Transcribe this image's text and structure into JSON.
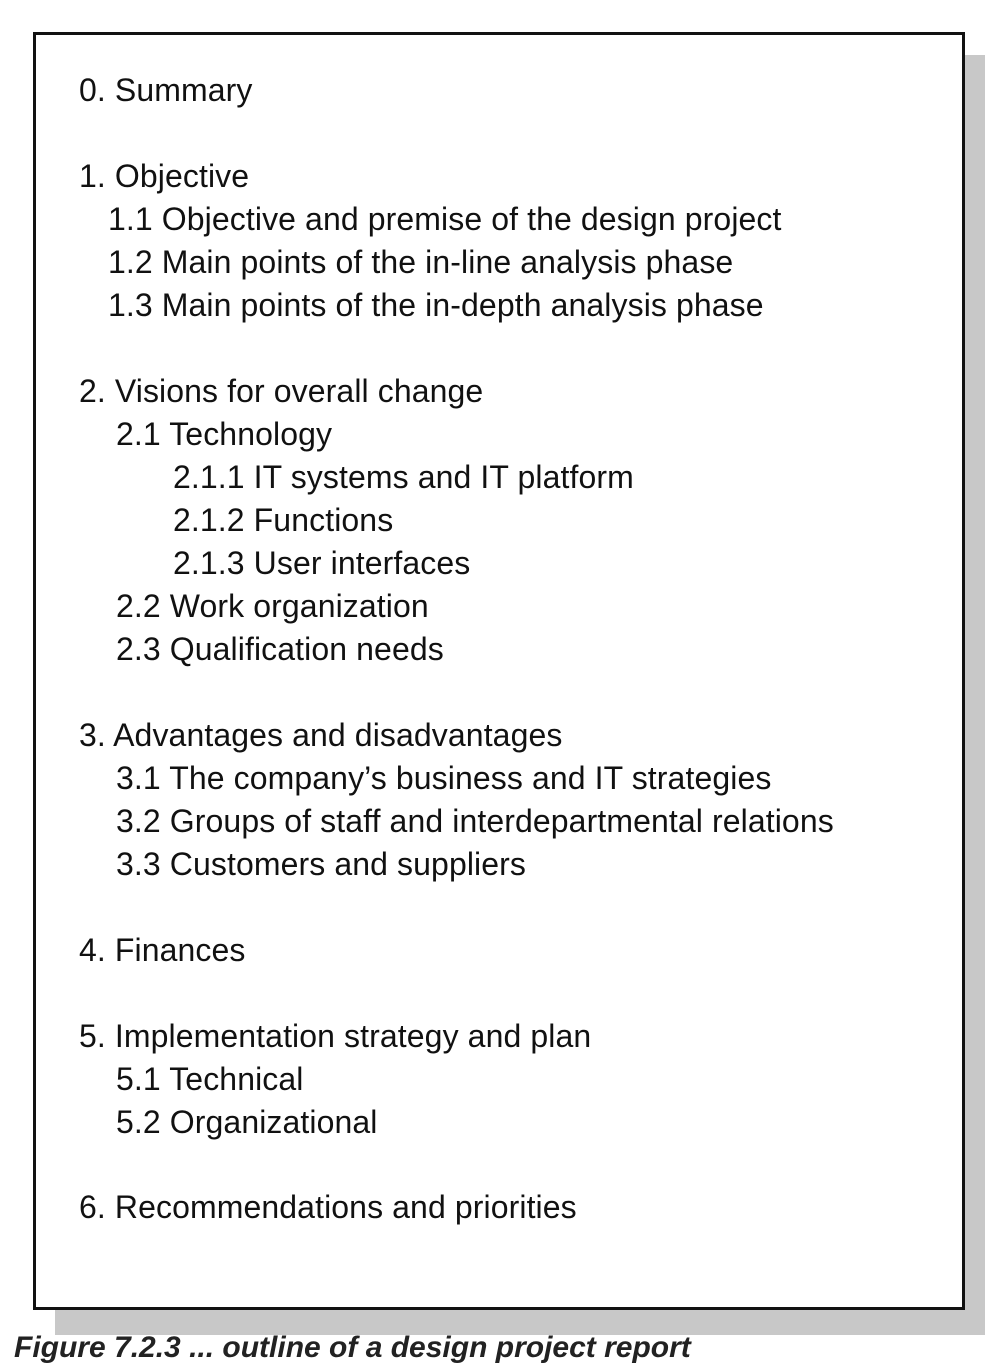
{
  "outline": {
    "items": [
      {
        "text": "0. Summary",
        "level": 0
      },
      {
        "text": "1. Objective",
        "level": 0
      },
      {
        "text": "1.1 Objective and premise of the design project",
        "level": 1
      },
      {
        "text": "1.2 Main points of the in-line analysis phase",
        "level": 1
      },
      {
        "text": "1.3 Main points of the in-depth analysis phase",
        "level": 1
      },
      {
        "text": "2. Visions for overall change",
        "level": 0
      },
      {
        "text": "2.1 Technology",
        "level": 1
      },
      {
        "text": "2.1.1 IT systems and IT platform",
        "level": 2
      },
      {
        "text": "2.1.2 Functions",
        "level": 2
      },
      {
        "text": "2.1.3 User interfaces",
        "level": 2
      },
      {
        "text": "2.2 Work organization",
        "level": 1
      },
      {
        "text": "2.3 Qualification needs",
        "level": 1
      },
      {
        "text": "3. Advantages and disadvantages",
        "level": 0
      },
      {
        "text": "3.1 The company’s business and IT strategies",
        "level": 1
      },
      {
        "text": "3.2 Groups of staff and interdepartmental relations",
        "level": 1
      },
      {
        "text": "3.3 Customers and suppliers",
        "level": 1
      },
      {
        "text": "4. Finances",
        "level": 0
      },
      {
        "text": "5. Implementation strategy and plan",
        "level": 0
      },
      {
        "text": "5.1 Technical",
        "level": 1
      },
      {
        "text": "5.2 Organizational",
        "level": 1
      },
      {
        "text": "6. Recommendations and priorities",
        "level": 0
      }
    ]
  },
  "caption": "Figure 7.2.3 ... outline of a design project report"
}
